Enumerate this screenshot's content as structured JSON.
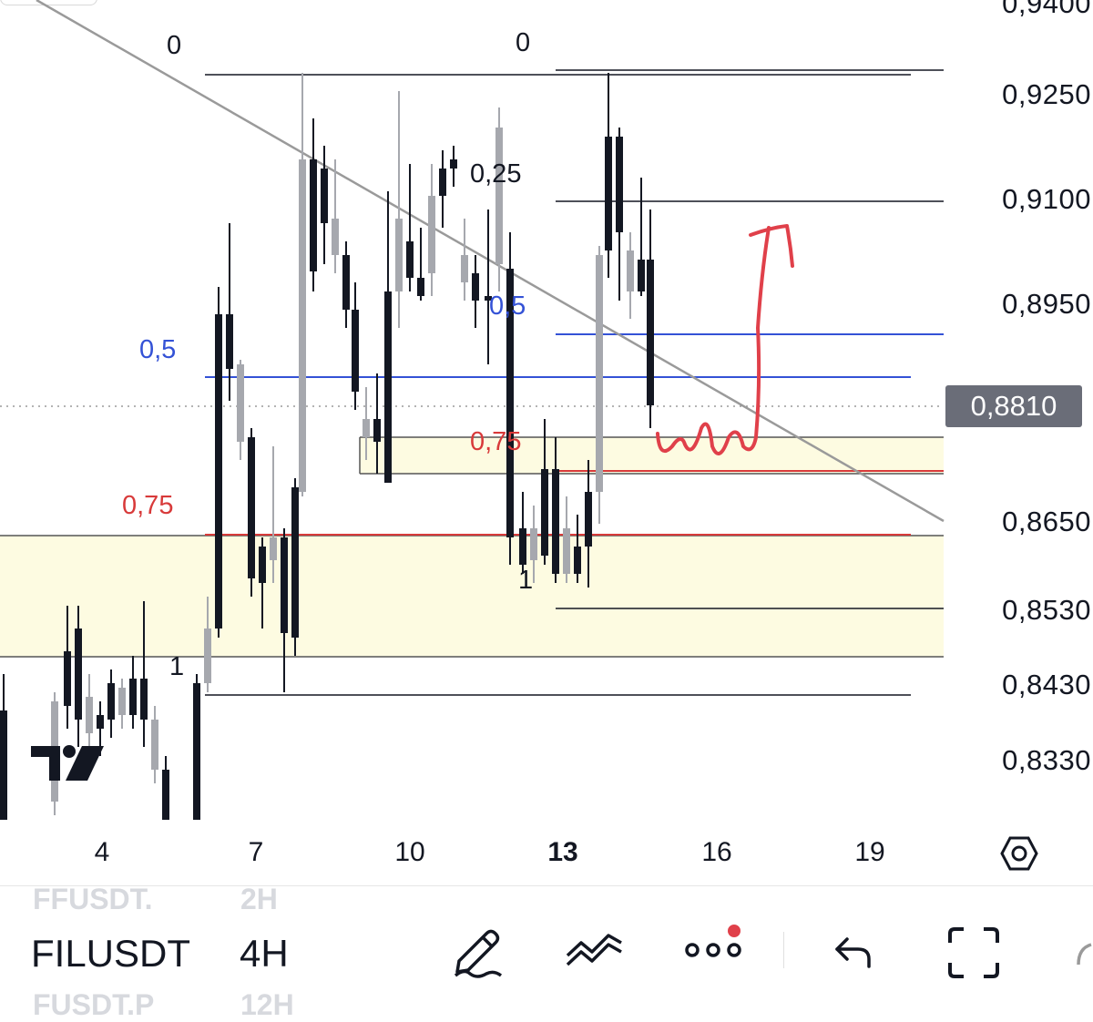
{
  "symbols": {
    "prev": "FFUSDT.",
    "current": "FILUSDT",
    "next": "FUSDT.P"
  },
  "timeframes": {
    "prev": "2H",
    "current": "4H",
    "next": "12H"
  },
  "price_axis": {
    "top_partial": "0,9400",
    "labels": [
      "0,9250",
      "0,9100",
      "0,8950",
      "0,8650",
      "0,8530",
      "0,8430",
      "0,8330"
    ],
    "current_price": "0,8810",
    "current_price_color": "#6a6d78"
  },
  "time_axis": {
    "labels": [
      "4",
      "7",
      "10",
      "13",
      "16",
      "19"
    ],
    "highlighted": "13"
  },
  "fib_left": {
    "level_0": "0",
    "level_05": "0,5",
    "level_075": "0,75",
    "level_1": "1"
  },
  "fib_right": {
    "level_0": "0",
    "level_025": "0,25",
    "level_05": "0,5",
    "level_075": "0,75",
    "level_1": "1"
  },
  "colors": {
    "blue_level": "#3452d6",
    "red_level": "#d83a3a",
    "zone_fill": "#fdfbe1",
    "annotation": "#e0404a",
    "candle_up": "#131722",
    "candle_down": "#a6a8ae",
    "trendline": "#9a9a9a"
  },
  "toolbar": {
    "draw_icon": "pen-icon",
    "indicators_icon": "trend-lines-icon",
    "more_icon": "more-dots-icon",
    "undo_icon": "undo-icon",
    "fullscreen_icon": "fullscreen-icon",
    "more_has_notification": true
  },
  "branding": {
    "logo": "tradingview-logo-icon"
  }
}
